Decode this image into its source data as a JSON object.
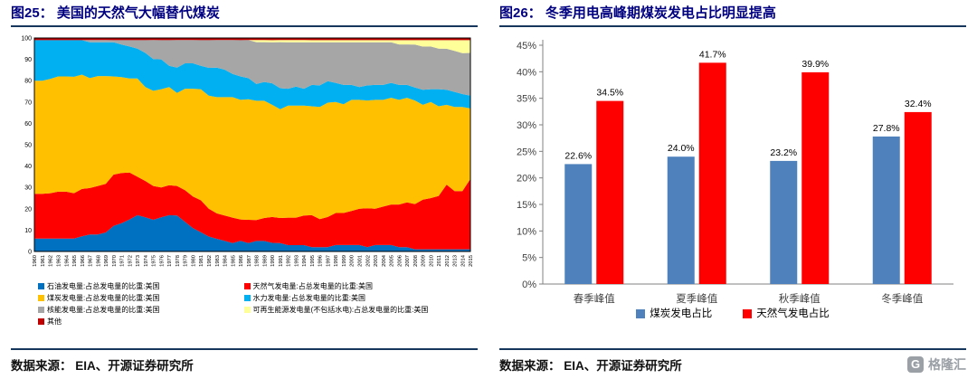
{
  "panels": {
    "left": {
      "title": "图25：  美国的天然气大幅替代煤炭",
      "source": "数据来源：  EIA、开源证券研究所"
    },
    "right": {
      "title": "图26：  冬季用电高峰期煤炭发电占比明显提高",
      "source": "数据来源：  EIA、开源证券研究所"
    }
  },
  "watermark": {
    "icon": "G",
    "text": "格隆汇"
  },
  "chart_data": [
    {
      "type": "area",
      "stacked": true,
      "title": "美国的天然气大幅替代煤炭",
      "x_start": 1960,
      "x_end": 2015,
      "ylim": [
        0,
        100
      ],
      "ytick_step": 10,
      "legend_position": "bottom",
      "series": [
        {
          "name": "石油发电量:占总发电量的比重:美国",
          "color": "#0070C0",
          "values": [
            6,
            6,
            6,
            6,
            6,
            6,
            7,
            8,
            8,
            9,
            12,
            13,
            15,
            17,
            16,
            15,
            16,
            17,
            17,
            14,
            11,
            9,
            7,
            6,
            5,
            4,
            5,
            4,
            5,
            5,
            4,
            4,
            3,
            3,
            3,
            2,
            2,
            2,
            3,
            3,
            3,
            3,
            2,
            3,
            3,
            3,
            2,
            2,
            1,
            1,
            1,
            1,
            1,
            1,
            1,
            1
          ]
        },
        {
          "name": "天然气发电量:占总发电量的比重:美国",
          "color": "#FF0000",
          "values": [
            21,
            21,
            21,
            22,
            22,
            21,
            22,
            22,
            23,
            23,
            24,
            23,
            22,
            18,
            17,
            16,
            14,
            14,
            14,
            15,
            15,
            15,
            13,
            12,
            12,
            12,
            10,
            11,
            10,
            11,
            12,
            12,
            13,
            13,
            14,
            15,
            13,
            14,
            15,
            15,
            16,
            17,
            18,
            17,
            18,
            19,
            20,
            21,
            21,
            23,
            24,
            25,
            30,
            27,
            27,
            33
          ]
        },
        {
          "name": "煤炭发电量:占总发电量的比重:美国",
          "color": "#FFC000",
          "values": [
            53,
            53,
            53,
            54,
            54,
            54,
            53,
            52,
            52,
            51,
            46,
            44,
            44,
            46,
            44,
            45,
            46,
            46,
            44,
            48,
            51,
            52,
            53,
            55,
            56,
            57,
            56,
            57,
            57,
            56,
            52,
            52,
            53,
            53,
            52,
            51,
            52,
            53,
            52,
            51,
            52,
            51,
            50,
            51,
            50,
            50,
            49,
            49,
            48,
            44,
            45,
            42,
            37,
            39,
            39,
            33
          ]
        },
        {
          "name": "水力发电量:占总发电量的比重:美国",
          "color": "#00B0F0",
          "values": [
            19,
            19,
            18,
            17,
            17,
            17,
            16,
            17,
            16,
            16,
            16,
            15,
            15,
            14,
            16,
            15,
            14,
            10,
            12,
            12,
            12,
            11,
            13,
            14,
            13,
            11,
            11,
            10,
            8,
            9,
            10,
            10,
            8,
            9,
            8,
            10,
            10,
            10,
            9,
            9,
            7,
            6,
            7,
            7,
            7,
            7,
            7,
            6,
            6,
            7,
            6,
            8,
            7,
            7,
            6,
            6
          ]
        },
        {
          "name": "核能发电量:占总发电量的比重:美国",
          "color": "#A6A6A6",
          "values": [
            0,
            0,
            0,
            0,
            0,
            0,
            0,
            1,
            1,
            1,
            1,
            2,
            3,
            4,
            6,
            9,
            9,
            12,
            13,
            11,
            11,
            12,
            13,
            13,
            14,
            16,
            17,
            18,
            20,
            19,
            19,
            22,
            22,
            21,
            22,
            20,
            20,
            18,
            19,
            20,
            20,
            21,
            20,
            20,
            20,
            19,
            19,
            19,
            20,
            20,
            20,
            19,
            19,
            19,
            19,
            20
          ]
        },
        {
          "name": "可再生能源发电量(不包括水电):占总发电量的比重:美国",
          "color": "#FFFF99",
          "values": [
            0,
            0,
            0,
            0,
            0,
            0,
            0,
            0,
            0,
            0,
            0,
            0,
            0,
            0,
            0,
            0,
            0,
            0,
            0,
            0,
            0,
            0,
            0,
            0,
            0,
            0,
            0,
            0,
            1,
            1,
            1,
            1,
            1,
            1,
            1,
            1,
            1,
            1,
            1,
            1,
            1,
            1,
            1,
            1,
            1,
            1,
            2,
            2,
            2,
            3,
            3,
            4,
            4,
            5,
            6,
            6
          ]
        },
        {
          "name": "其他",
          "color": "#C00000",
          "values": [
            1,
            1,
            1,
            1,
            1,
            1,
            1,
            1,
            1,
            1,
            1,
            1,
            1,
            1,
            1,
            1,
            1,
            1,
            1,
            1,
            1,
            1,
            1,
            1,
            1,
            1,
            1,
            1,
            1,
            1,
            1,
            1,
            1,
            1,
            1,
            1,
            1,
            1,
            1,
            1,
            1,
            1,
            1,
            1,
            1,
            1,
            1,
            1,
            1,
            1,
            1,
            1,
            1,
            1,
            1,
            1
          ]
        }
      ],
      "legend": [
        {
          "label": "石油发电量:占总发电量的比重:美国",
          "color": "#0070C0"
        },
        {
          "label": "天然气发电量:占总发电量的比重:美国",
          "color": "#FF0000"
        },
        {
          "label": "煤炭发电量:占总发电量的比重:美国",
          "color": "#FFC000"
        },
        {
          "label": "水力发电量:占总发电量的比重:美国",
          "color": "#00B0F0"
        },
        {
          "label": "核能发电量:占总发电量的比重:美国",
          "color": "#A6A6A6"
        },
        {
          "label": "可再生能源发电量(不包括水电):占总发电量的比重:美国",
          "color": "#FFFF99"
        },
        {
          "label": "其他",
          "color": "#C00000"
        }
      ]
    },
    {
      "type": "bar",
      "title": "冬季用电高峰期煤炭发电占比明显提高",
      "categories": [
        "春季峰值",
        "夏季峰值",
        "秋季峰值",
        "冬季峰值"
      ],
      "ylim": [
        0,
        45
      ],
      "ytick_step": 5,
      "ytick_suffix": "%",
      "legend_position": "bottom",
      "series": [
        {
          "name": "煤炭发电占比",
          "color": "#4F81BD",
          "values": [
            22.6,
            24.0,
            23.2,
            27.8
          ],
          "labels": [
            "22.6%",
            "24.0%",
            "23.2%",
            "27.8%"
          ]
        },
        {
          "name": "天然气发电占比",
          "color": "#FF0000",
          "values": [
            34.5,
            41.7,
            39.9,
            32.4
          ],
          "labels": [
            "34.5%",
            "41.7%",
            "39.9%",
            "32.4%"
          ]
        }
      ]
    }
  ]
}
